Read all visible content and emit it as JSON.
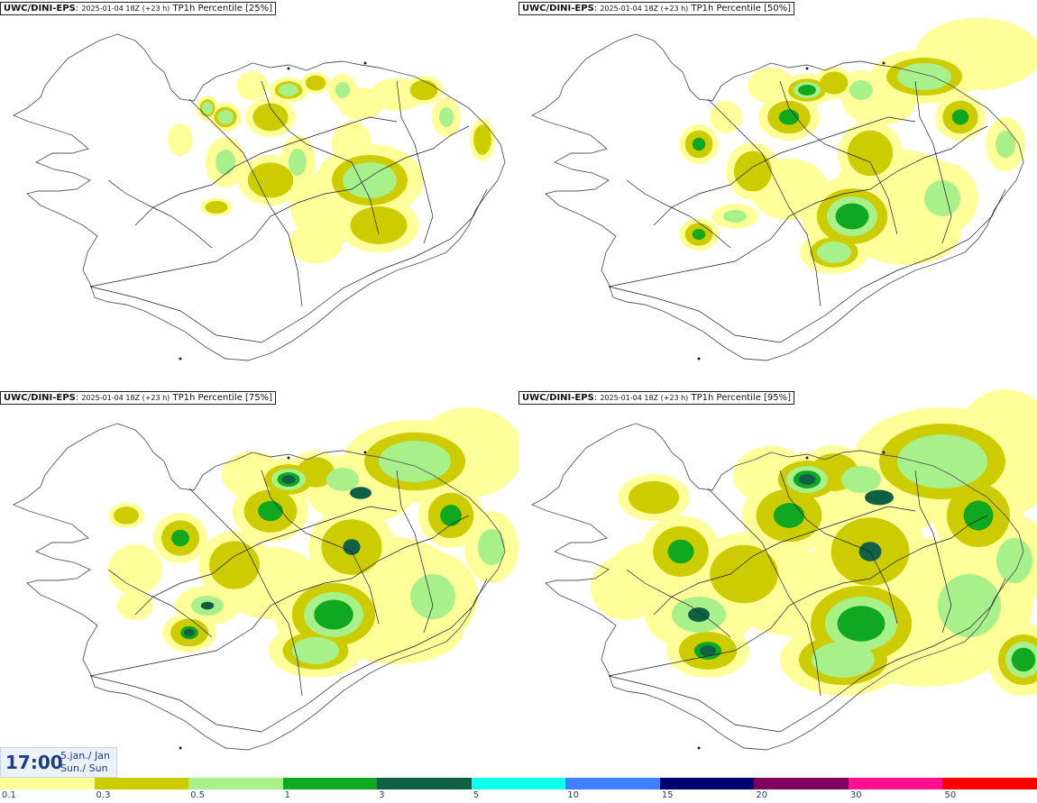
{
  "panels": [
    {
      "brand": "UWC/DINI-EPS",
      "run": "2025-01-04 18Z (+23 h)",
      "label": "TP1h Percentile [25%]",
      "intensity": 0
    },
    {
      "brand": "UWC/DINI-EPS",
      "run": "2025-01-04 18Z (+23 h)",
      "label": "TP1h Percentile [50%]",
      "intensity": 1
    },
    {
      "brand": "UWC/DINI-EPS",
      "run": "2025-01-04 18Z (+23 h)",
      "label": "TP1h Percentile [75%]",
      "intensity": 2
    },
    {
      "brand": "UWC/DINI-EPS",
      "run": "2025-01-04 18Z (+23 h)",
      "label": "TP1h Percentile [95%]",
      "intensity": 3
    }
  ],
  "time": {
    "clock": "17:00",
    "date_line": "5.jan./ Jan",
    "day_line": "Sun./ Sun"
  },
  "legend": {
    "colors": [
      "#ffff99",
      "#cccc00",
      "#a8f08a",
      "#10a820",
      "#106048",
      "#10ffee",
      "#4080ff",
      "#000070",
      "#800060",
      "#ff1090",
      "#ff0000"
    ],
    "labels": [
      "0.1",
      "0.3",
      "0.5",
      "1",
      "3",
      "5",
      "10",
      "15",
      "20",
      "30",
      "50"
    ]
  },
  "map_colors": {
    "coast": "#555555",
    "road": "#1a1a3a"
  }
}
